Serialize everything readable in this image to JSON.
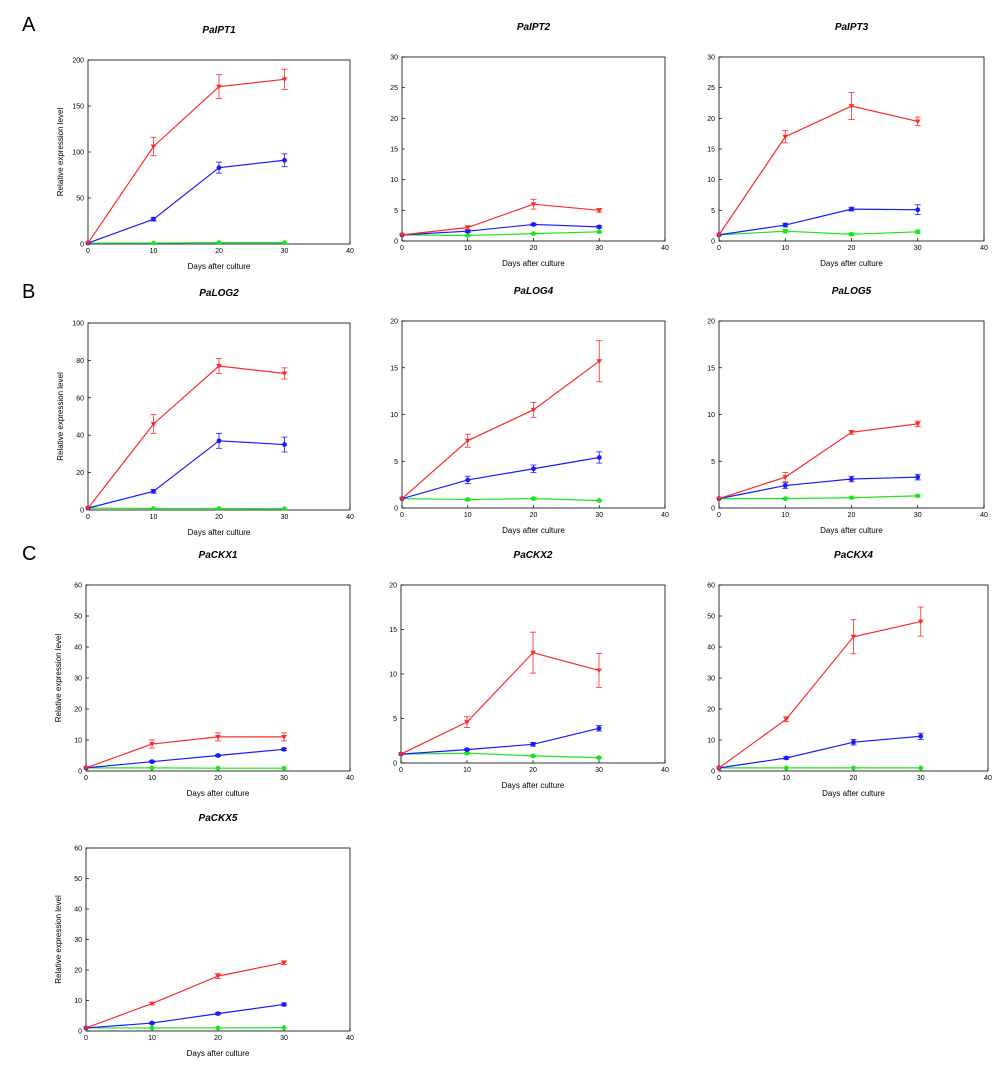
{
  "panel_letters": [
    "A",
    "B",
    "C"
  ],
  "series_colors": [
    "#ff2a2a",
    "#1a1aff",
    "#1ee61e"
  ],
  "chart_data": [
    {
      "type": "line",
      "title": "PaIPT1",
      "xlabel": "Days after culture",
      "ylabel": "Relative expression level",
      "xlim": [
        0,
        40
      ],
      "xticks": [
        0,
        10,
        20,
        30,
        40
      ],
      "ylim": [
        0,
        200
      ],
      "yticks": [
        0,
        50,
        100,
        150,
        200
      ],
      "x": [
        0,
        10,
        20,
        30
      ],
      "series": [
        {
          "values": [
            1,
            106,
            171,
            179
          ],
          "errors": [
            0,
            10,
            13,
            11
          ]
        },
        {
          "values": [
            1,
            27,
            83,
            91
          ],
          "errors": [
            0,
            2,
            6,
            7
          ]
        },
        {
          "values": [
            1,
            1,
            1.5,
            1.5
          ],
          "errors": [
            0,
            0,
            0,
            0
          ]
        }
      ]
    },
    {
      "type": "line",
      "title": "PaIPT2",
      "xlabel": "Days after culture",
      "ylabel": "",
      "xlim": [
        0,
        40
      ],
      "xticks": [
        0,
        10,
        20,
        30,
        40
      ],
      "ylim": [
        0,
        30
      ],
      "yticks": [
        0,
        5,
        10,
        15,
        20,
        25,
        30
      ],
      "x": [
        0,
        10,
        20,
        30
      ],
      "series": [
        {
          "values": [
            1,
            2.2,
            6,
            5
          ],
          "errors": [
            0,
            0.3,
            0.8,
            0.3
          ]
        },
        {
          "values": [
            1,
            1.6,
            2.7,
            2.3
          ],
          "errors": [
            0,
            0.2,
            0.2,
            0.2
          ]
        },
        {
          "values": [
            1,
            0.9,
            1.2,
            1.5
          ],
          "errors": [
            0,
            0.1,
            0.1,
            0.1
          ]
        }
      ]
    },
    {
      "type": "line",
      "title": "PaIPT3",
      "xlabel": "Days after culture",
      "ylabel": "",
      "xlim": [
        0,
        40
      ],
      "xticks": [
        0,
        10,
        20,
        30,
        40
      ],
      "ylim": [
        0,
        30
      ],
      "yticks": [
        0,
        5,
        10,
        15,
        20,
        25,
        30
      ],
      "x": [
        0,
        10,
        20,
        30
      ],
      "series": [
        {
          "values": [
            1,
            17,
            22,
            19.5
          ],
          "errors": [
            0,
            1,
            2.2,
            0.7
          ]
        },
        {
          "values": [
            1,
            2.6,
            5.2,
            5.1
          ],
          "errors": [
            0,
            0.3,
            0.3,
            0.8
          ]
        },
        {
          "values": [
            1,
            1.6,
            1.1,
            1.5
          ],
          "errors": [
            0,
            0.3,
            0.2,
            0.3
          ]
        }
      ]
    },
    {
      "type": "line",
      "title": "PaLOG2",
      "xlabel": "Days after culture",
      "ylabel": "Relative expression level",
      "xlim": [
        0,
        40
      ],
      "xticks": [
        0,
        10,
        20,
        30,
        40
      ],
      "ylim": [
        0,
        100
      ],
      "yticks": [
        0,
        20,
        40,
        60,
        80,
        100
      ],
      "x": [
        0,
        10,
        20,
        30
      ],
      "series": [
        {
          "values": [
            1,
            46,
            77,
            73
          ],
          "errors": [
            0,
            5,
            4,
            3
          ]
        },
        {
          "values": [
            1,
            10,
            37,
            35
          ],
          "errors": [
            0,
            1,
            4,
            4
          ]
        },
        {
          "values": [
            1,
            0.8,
            0.8,
            0.7
          ],
          "errors": [
            0,
            0,
            0,
            0
          ]
        }
      ]
    },
    {
      "type": "line",
      "title": "PaLOG4",
      "xlabel": "Days after culture",
      "ylabel": "",
      "xlim": [
        0,
        40
      ],
      "xticks": [
        0,
        10,
        20,
        30,
        40
      ],
      "ylim": [
        0,
        20
      ],
      "yticks": [
        0,
        5,
        10,
        15,
        20
      ],
      "x": [
        0,
        10,
        20,
        30
      ],
      "series": [
        {
          "values": [
            1,
            7.2,
            10.5,
            15.7
          ],
          "errors": [
            0,
            0.7,
            0.8,
            2.2
          ]
        },
        {
          "values": [
            1,
            3,
            4.2,
            5.4
          ],
          "errors": [
            0,
            0.4,
            0.4,
            0.6
          ]
        },
        {
          "values": [
            1,
            0.9,
            1,
            0.8
          ],
          "errors": [
            0,
            0.1,
            0.1,
            0.1
          ]
        }
      ]
    },
    {
      "type": "line",
      "title": "PaLOG5",
      "xlabel": "Days after culture",
      "ylabel": "",
      "xlim": [
        0,
        40
      ],
      "xticks": [
        0,
        10,
        20,
        30,
        40
      ],
      "ylim": [
        0,
        20
      ],
      "yticks": [
        0,
        5,
        10,
        15,
        20
      ],
      "x": [
        0,
        10,
        20,
        30
      ],
      "series": [
        {
          "values": [
            1,
            3.3,
            8.1,
            9
          ],
          "errors": [
            0,
            0.5,
            0.2,
            0.3
          ]
        },
        {
          "values": [
            1,
            2.4,
            3.1,
            3.3
          ],
          "errors": [
            0,
            0.3,
            0.3,
            0.3
          ]
        },
        {
          "values": [
            1,
            1,
            1.1,
            1.3
          ],
          "errors": [
            0,
            0.1,
            0.1,
            0.1
          ]
        }
      ]
    },
    {
      "type": "line",
      "title": "PaCKX1",
      "xlabel": "Days after culture",
      "ylabel": "Relative expression level",
      "xlim": [
        0,
        40
      ],
      "xticks": [
        0,
        10,
        20,
        30,
        40
      ],
      "ylim": [
        0,
        60
      ],
      "yticks": [
        0,
        10,
        20,
        30,
        40,
        50,
        60
      ],
      "x": [
        0,
        10,
        20,
        30
      ],
      "series": [
        {
          "values": [
            1,
            8.7,
            11,
            11
          ],
          "errors": [
            0,
            1.3,
            1.3,
            1.3
          ]
        },
        {
          "values": [
            1,
            3,
            5,
            7
          ],
          "errors": [
            0,
            0.3,
            0.3,
            0.4
          ]
        },
        {
          "values": [
            1,
            1,
            0.9,
            0.9
          ],
          "errors": [
            0,
            0,
            0,
            0
          ]
        }
      ]
    },
    {
      "type": "line",
      "title": "PaCKX2",
      "xlabel": "Days after culture",
      "ylabel": "",
      "xlim": [
        0,
        40
      ],
      "xticks": [
        0,
        10,
        20,
        30,
        40
      ],
      "ylim": [
        0,
        20
      ],
      "yticks": [
        0,
        5,
        10,
        15,
        20
      ],
      "x": [
        0,
        10,
        20,
        30
      ],
      "series": [
        {
          "values": [
            1,
            4.6,
            12.4,
            10.4
          ],
          "errors": [
            0,
            0.6,
            2.3,
            1.9
          ]
        },
        {
          "values": [
            1,
            1.5,
            2.1,
            3.9
          ],
          "errors": [
            0,
            0.1,
            0.2,
            0.3
          ]
        },
        {
          "values": [
            1,
            1.1,
            0.8,
            0.6
          ],
          "errors": [
            0,
            0.1,
            0.1,
            0.1
          ]
        }
      ]
    },
    {
      "type": "line",
      "title": "PaCKX4",
      "xlabel": "Days after culture",
      "ylabel": "",
      "xlim": [
        0,
        40
      ],
      "xticks": [
        0,
        10,
        20,
        30,
        40
      ],
      "ylim": [
        0,
        60
      ],
      "yticks": [
        0,
        10,
        20,
        30,
        40,
        50,
        60
      ],
      "x": [
        0,
        10,
        20,
        30
      ],
      "series": [
        {
          "values": [
            1,
            16.7,
            43.3,
            48.2
          ],
          "errors": [
            0,
            0.8,
            5.5,
            4.7
          ]
        },
        {
          "values": [
            1,
            4.2,
            9.3,
            11.2
          ],
          "errors": [
            0,
            0.4,
            0.9,
            1
          ]
        },
        {
          "values": [
            1,
            1,
            1,
            1
          ],
          "errors": [
            0,
            0,
            0,
            0
          ]
        }
      ]
    },
    {
      "type": "line",
      "title": "PaCKX5",
      "xlabel": "Days after culture",
      "ylabel": "Relative expression level",
      "xlim": [
        0,
        40
      ],
      "xticks": [
        0,
        10,
        20,
        30,
        40
      ],
      "ylim": [
        0,
        60
      ],
      "yticks": [
        0,
        10,
        20,
        30,
        40,
        50,
        60
      ],
      "x": [
        0,
        10,
        20,
        30
      ],
      "series": [
        {
          "values": [
            1,
            9,
            18,
            22.4
          ],
          "errors": [
            0,
            0.4,
            0.8,
            0.6
          ]
        },
        {
          "values": [
            1,
            2.6,
            5.7,
            8.7
          ],
          "errors": [
            0,
            0.3,
            0.4,
            0.5
          ]
        },
        {
          "values": [
            1,
            1,
            1,
            1.1
          ],
          "errors": [
            0,
            0,
            0,
            0
          ]
        }
      ]
    }
  ]
}
